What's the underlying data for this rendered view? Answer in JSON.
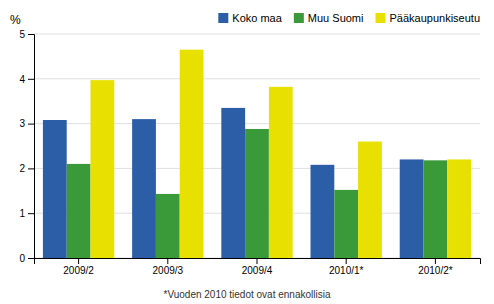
{
  "chart_data": {
    "type": "bar",
    "ylabel": "%",
    "footnote": "*Vuoden 2010 tiedot ovat ennakollisia",
    "categories": [
      "2009/2",
      "2009/3",
      "2009/4",
      "2010/1*",
      "2010/2*"
    ],
    "series": [
      {
        "name": "Koko maa",
        "color": "#2b5ea7",
        "values": [
          3.08,
          3.1,
          3.35,
          2.08,
          2.2
        ]
      },
      {
        "name": "Muu Suomi",
        "color": "#3a9a3a",
        "values": [
          2.1,
          1.43,
          2.88,
          1.52,
          2.18
        ]
      },
      {
        "name": "Pääkaupunkiseutu",
        "color": "#e8e000",
        "values": [
          3.97,
          4.65,
          3.82,
          2.6,
          2.2
        ]
      }
    ],
    "ylim": [
      0,
      5
    ],
    "yticks": [
      0,
      1,
      2,
      3,
      4,
      5
    ],
    "grid": true,
    "legend": "upper right"
  }
}
